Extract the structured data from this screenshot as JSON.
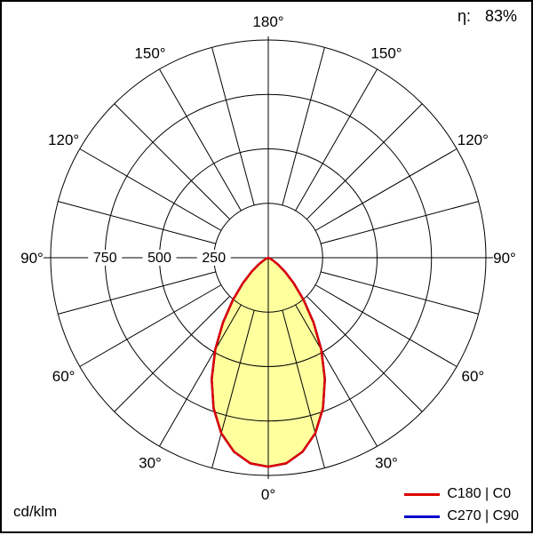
{
  "header": {
    "efficiency_label": "η:",
    "efficiency_value": "83%"
  },
  "footer": {
    "unit_label": "cd/klm"
  },
  "legend": [
    {
      "label": "C180 | C0",
      "color": "#dd0000"
    },
    {
      "label": "C270 | C90",
      "color": "#0000cc"
    }
  ],
  "chart_data": {
    "type": "polar",
    "unit": "cd/klm",
    "efficiency_percent": 83,
    "ring_values": [
      250,
      500,
      750,
      1000
    ],
    "ring_labels": [
      250,
      500,
      750
    ],
    "angle_step_deg": 15,
    "angle_labels_deg": [
      0,
      30,
      60,
      90,
      120,
      150,
      180
    ],
    "gamma_deg": [
      0,
      5,
      10,
      15,
      20,
      25,
      30,
      35,
      40,
      45,
      50,
      55,
      60,
      65,
      70,
      75,
      80,
      85,
      90
    ],
    "series": [
      {
        "name": "C180 | C0",
        "color": "#dd0000",
        "fill": "#ffff9e",
        "values": [
          960,
          948,
          905,
          835,
          735,
          615,
          487,
          362,
          253,
          165,
          100,
          55,
          26,
          10,
          2,
          0,
          0,
          0,
          0
        ]
      },
      {
        "name": "C270 | C90",
        "color": "#0000cc",
        "fill": null,
        "values": [
          960,
          948,
          905,
          835,
          735,
          615,
          487,
          362,
          253,
          165,
          100,
          55,
          26,
          10,
          2,
          0,
          0,
          0,
          0
        ]
      }
    ]
  }
}
